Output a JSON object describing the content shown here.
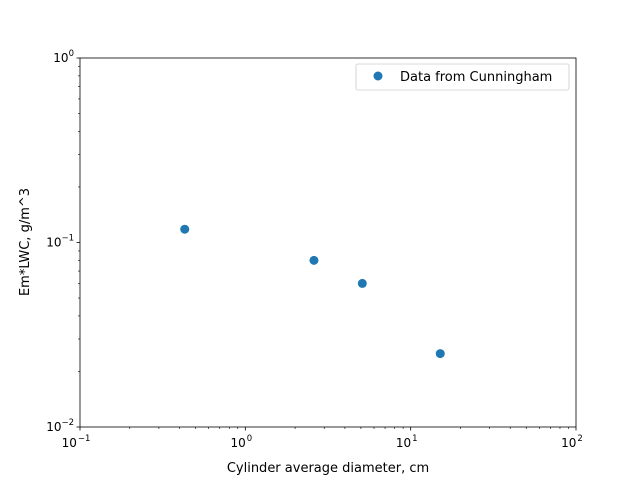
{
  "chart_data": {
    "type": "scatter",
    "title": "",
    "xlabel": "Cylinder average diameter, cm",
    "ylabel": "Em*LWC, g/m^3",
    "xscale": "log",
    "yscale": "log",
    "xlim": [
      0.1,
      100
    ],
    "ylim": [
      0.01,
      1
    ],
    "grid": false,
    "legend_position": "top-right",
    "x_tick_labels": [
      {
        "base": "10",
        "exp": "−1"
      },
      {
        "base": "10",
        "exp": "0"
      },
      {
        "base": "10",
        "exp": "1"
      },
      {
        "base": "10",
        "exp": "2"
      }
    ],
    "y_tick_labels": [
      {
        "base": "10",
        "exp": "−2"
      },
      {
        "base": "10",
        "exp": "−1"
      },
      {
        "base": "10",
        "exp": "0"
      }
    ],
    "series": [
      {
        "name": "Data from Cunningham",
        "color": "#1f77b4",
        "marker": "circle",
        "x": [
          0.43,
          2.6,
          5.1,
          15.1
        ],
        "y": [
          0.118,
          0.08,
          0.06,
          0.025
        ]
      }
    ]
  }
}
